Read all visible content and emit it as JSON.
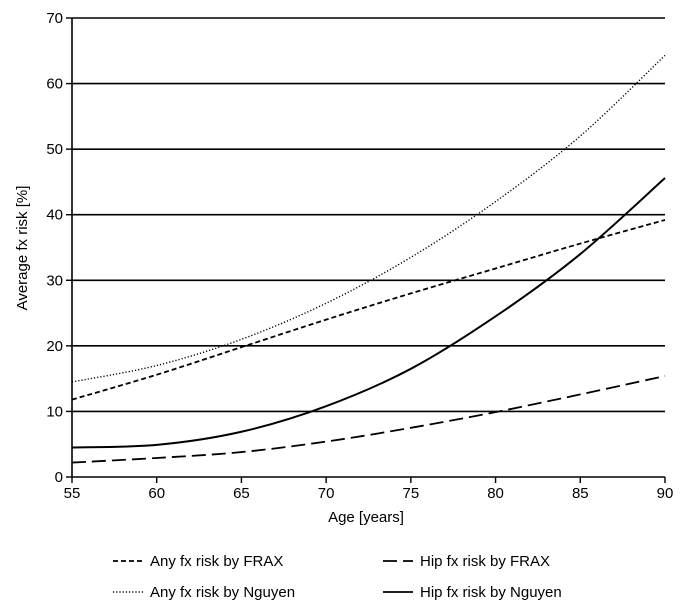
{
  "chart_data": {
    "type": "line",
    "xlabel": "Age [years]",
    "ylabel": "Average fx risk [%]",
    "xlim": [
      55,
      90
    ],
    "ylim": [
      0,
      70
    ],
    "x_ticks": [
      55,
      60,
      65,
      70,
      75,
      80,
      85,
      90
    ],
    "y_ticks": [
      0,
      10,
      20,
      30,
      40,
      50,
      60,
      70
    ],
    "grid": "horizontal",
    "legend_position": "bottom",
    "x": [
      55,
      60,
      65,
      70,
      75,
      80,
      85,
      90
    ],
    "series": [
      {
        "name": "Any fx risk by FRAX",
        "style": "short-dash",
        "values": [
          11.8,
          15.6,
          19.8,
          24.0,
          28.0,
          31.8,
          35.6,
          39.2
        ]
      },
      {
        "name": "Hip fx risk by FRAX",
        "style": "long-dash",
        "values": [
          2.2,
          2.9,
          3.8,
          5.4,
          7.5,
          9.9,
          12.6,
          15.4
        ]
      },
      {
        "name": "Any fx risk by Nguyen",
        "style": "dotted",
        "values": [
          14.5,
          17.0,
          21.0,
          26.5,
          33.5,
          42.0,
          52.0,
          64.3
        ]
      },
      {
        "name": "Hip fx risk by Nguyen",
        "style": "solid",
        "values": [
          4.5,
          4.9,
          6.9,
          10.8,
          16.5,
          24.5,
          34.0,
          45.6
        ]
      }
    ]
  }
}
